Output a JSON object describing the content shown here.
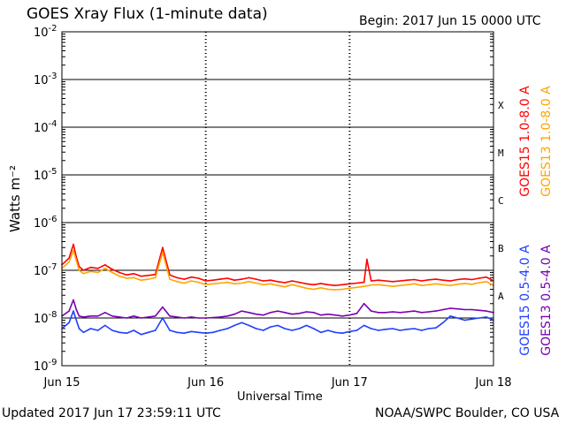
{
  "header": {
    "title": "GOES Xray Flux (1-minute data)",
    "begin": "Begin:  2017 Jun 15 0000 UTC"
  },
  "footer": {
    "updated": "Updated 2017 Jun 17 23:59:11 UTC",
    "credit": "NOAA/SWPC Boulder, CO USA"
  },
  "chart_data": {
    "type": "line",
    "title": "GOES Xray Flux (1-minute data)",
    "xlabel": "Universal Time",
    "ylabel": "Watts m⁻²",
    "yscale": "log",
    "ylim": [
      1e-09,
      0.01
    ],
    "xlim": [
      0,
      3
    ],
    "x_tick_labels": [
      "Jun 15",
      "Jun 16",
      "Jun 17",
      "Jun 18"
    ],
    "y_tick_labels": [
      {
        "value": 1e-09,
        "base": "10",
        "exp": "-9"
      },
      {
        "value": 1e-08,
        "base": "10",
        "exp": "-8"
      },
      {
        "value": 1e-07,
        "base": "10",
        "exp": "-7"
      },
      {
        "value": 1e-06,
        "base": "10",
        "exp": "-6"
      },
      {
        "value": 1e-05,
        "base": "10",
        "exp": "-5"
      },
      {
        "value": 0.0001,
        "base": "10",
        "exp": "-4"
      },
      {
        "value": 0.001,
        "base": "10",
        "exp": "-3"
      },
      {
        "value": 0.01,
        "base": "10",
        "exp": "-2"
      }
    ],
    "flare_classes": [
      {
        "label": "A",
        "value": 3e-08
      },
      {
        "label": "B",
        "value": 3e-07
      },
      {
        "label": "C",
        "value": 3e-06
      },
      {
        "label": "M",
        "value": 3e-05
      },
      {
        "label": "X",
        "value": 0.0003
      }
    ],
    "grid": true,
    "legend_placement": "right",
    "series": [
      {
        "name": "GOES15 1.0-8.0 A",
        "color": "#ff0000",
        "x": [
          0,
          0.05,
          0.08,
          0.1,
          0.12,
          0.15,
          0.2,
          0.25,
          0.3,
          0.35,
          0.4,
          0.45,
          0.5,
          0.55,
          0.6,
          0.65,
          0.7,
          0.75,
          0.8,
          0.85,
          0.9,
          0.95,
          1.0,
          1.05,
          1.1,
          1.15,
          1.2,
          1.25,
          1.3,
          1.35,
          1.4,
          1.45,
          1.5,
          1.55,
          1.6,
          1.65,
          1.7,
          1.75,
          1.8,
          1.85,
          1.9,
          1.95,
          2.0,
          2.05,
          2.1,
          2.12,
          2.15,
          2.2,
          2.25,
          2.3,
          2.35,
          2.4,
          2.45,
          2.5,
          2.55,
          2.6,
          2.65,
          2.7,
          2.75,
          2.8,
          2.85,
          2.9,
          2.95,
          3.0
        ],
        "y": [
          1.3e-07,
          1.8e-07,
          3.5e-07,
          1.9e-07,
          1.2e-07,
          1e-07,
          1.15e-07,
          1.1e-07,
          1.3e-07,
          1.05e-07,
          9e-08,
          8e-08,
          8.5e-08,
          7.5e-08,
          7.8e-08,
          8.2e-08,
          3e-07,
          8e-08,
          7e-08,
          6.5e-08,
          7.2e-08,
          6.8e-08,
          6e-08,
          6.2e-08,
          6.5e-08,
          6.8e-08,
          6.2e-08,
          6.5e-08,
          7e-08,
          6.5e-08,
          6e-08,
          6.2e-08,
          5.8e-08,
          5.5e-08,
          6e-08,
          5.6e-08,
          5.2e-08,
          5e-08,
          5.3e-08,
          5e-08,
          4.8e-08,
          5e-08,
          5.2e-08,
          5.4e-08,
          5.6e-08,
          1.7e-07,
          6e-08,
          6.2e-08,
          6e-08,
          5.8e-08,
          6e-08,
          6.2e-08,
          6.4e-08,
          6e-08,
          6.3e-08,
          6.5e-08,
          6.2e-08,
          6e-08,
          6.4e-08,
          6.6e-08,
          6.4e-08,
          6.8e-08,
          7.2e-08,
          6e-08
        ]
      },
      {
        "name": "GOES13 1.0-8.0 A",
        "color": "#ffa500",
        "x": [
          0,
          0.05,
          0.08,
          0.1,
          0.12,
          0.15,
          0.2,
          0.25,
          0.3,
          0.35,
          0.4,
          0.45,
          0.5,
          0.55,
          0.6,
          0.65,
          0.7,
          0.75,
          0.8,
          0.85,
          0.9,
          0.95,
          1.0,
          1.05,
          1.1,
          1.15,
          1.2,
          1.25,
          1.3,
          1.35,
          1.4,
          1.45,
          1.5,
          1.55,
          1.6,
          1.65,
          1.7,
          1.75,
          1.8,
          1.85,
          1.9,
          1.95,
          2.0,
          2.05,
          2.1,
          2.15,
          2.2,
          2.25,
          2.3,
          2.35,
          2.4,
          2.45,
          2.5,
          2.55,
          2.6,
          2.65,
          2.7,
          2.75,
          2.8,
          2.85,
          2.9,
          2.95,
          3.0
        ],
        "y": [
          1.1e-07,
          1.5e-07,
          2.6e-07,
          1.6e-07,
          1e-07,
          8.5e-08,
          9.5e-08,
          9e-08,
          1.1e-07,
          9e-08,
          7.5e-08,
          6.8e-08,
          7e-08,
          6.2e-08,
          6.5e-08,
          7e-08,
          2.4e-07,
          6.5e-08,
          5.8e-08,
          5.4e-08,
          6e-08,
          5.6e-08,
          5e-08,
          5.2e-08,
          5.4e-08,
          5.6e-08,
          5.2e-08,
          5.4e-08,
          5.8e-08,
          5.4e-08,
          5e-08,
          5.2e-08,
          4.8e-08,
          4.5e-08,
          5e-08,
          4.6e-08,
          4.2e-08,
          4e-08,
          4.3e-08,
          4e-08,
          3.9e-08,
          4e-08,
          4.2e-08,
          4.4e-08,
          4.6e-08,
          4.9e-08,
          5e-08,
          4.8e-08,
          4.6e-08,
          4.8e-08,
          5e-08,
          5.2e-08,
          4.8e-08,
          5e-08,
          5.2e-08,
          5e-08,
          4.8e-08,
          5.1e-08,
          5.3e-08,
          5.1e-08,
          5.5e-08,
          5.8e-08,
          4.8e-08
        ]
      },
      {
        "name": "GOES15 0.5-4.0 A",
        "color": "#1f3fff",
        "x": [
          0,
          0.05,
          0.08,
          0.1,
          0.12,
          0.15,
          0.2,
          0.25,
          0.3,
          0.35,
          0.4,
          0.45,
          0.5,
          0.55,
          0.6,
          0.65,
          0.7,
          0.75,
          0.8,
          0.85,
          0.9,
          0.95,
          1.0,
          1.05,
          1.1,
          1.15,
          1.2,
          1.25,
          1.3,
          1.35,
          1.4,
          1.45,
          1.5,
          1.55,
          1.6,
          1.65,
          1.7,
          1.75,
          1.8,
          1.85,
          1.9,
          1.95,
          2.0,
          2.05,
          2.1,
          2.15,
          2.2,
          2.25,
          2.3,
          2.35,
          2.4,
          2.45,
          2.5,
          2.55,
          2.6,
          2.65,
          2.7,
          2.75,
          2.8,
          2.85,
          2.9,
          2.95,
          3.0
        ],
        "y": [
          6e-09,
          8e-09,
          1.4e-08,
          9e-09,
          6e-09,
          5e-09,
          6e-09,
          5.5e-09,
          7e-09,
          5.5e-09,
          5e-09,
          4.8e-09,
          5.5e-09,
          4.5e-09,
          5e-09,
          5.5e-09,
          1e-08,
          5.5e-09,
          5e-09,
          4.8e-09,
          5.2e-09,
          5e-09,
          4.8e-09,
          5e-09,
          5.5e-09,
          6e-09,
          7e-09,
          8e-09,
          7e-09,
          6e-09,
          5.5e-09,
          6.5e-09,
          7e-09,
          6e-09,
          5.5e-09,
          6e-09,
          7e-09,
          6e-09,
          5e-09,
          5.5e-09,
          5e-09,
          4.8e-09,
          5.2e-09,
          5.5e-09,
          7e-09,
          6e-09,
          5.5e-09,
          5.8e-09,
          6e-09,
          5.5e-09,
          5.8e-09,
          6e-09,
          5.5e-09,
          6e-09,
          6.2e-09,
          8e-09,
          1.1e-08,
          1e-08,
          9e-09,
          9.5e-09,
          1e-08,
          1.05e-08,
          9e-09
        ]
      },
      {
        "name": "GOES13 0.5-4.0 A",
        "color": "#7a00b0",
        "x": [
          0,
          0.05,
          0.08,
          0.1,
          0.12,
          0.15,
          0.2,
          0.25,
          0.3,
          0.35,
          0.4,
          0.45,
          0.5,
          0.55,
          0.6,
          0.65,
          0.7,
          0.75,
          0.8,
          0.85,
          0.9,
          0.95,
          1.0,
          1.05,
          1.1,
          1.15,
          1.2,
          1.25,
          1.3,
          1.35,
          1.4,
          1.45,
          1.5,
          1.55,
          1.6,
          1.65,
          1.7,
          1.75,
          1.8,
          1.85,
          1.9,
          1.95,
          2.0,
          2.05,
          2.1,
          2.15,
          2.2,
          2.25,
          2.3,
          2.35,
          2.4,
          2.45,
          2.5,
          2.55,
          2.6,
          2.65,
          2.7,
          2.75,
          2.8,
          2.85,
          2.9,
          2.95,
          3.0
        ],
        "y": [
          1.1e-08,
          1.4e-08,
          2.4e-08,
          1.5e-08,
          1.1e-08,
          1.05e-08,
          1.1e-08,
          1.1e-08,
          1.3e-08,
          1.1e-08,
          1.05e-08,
          1e-08,
          1.1e-08,
          1e-08,
          1.05e-08,
          1.1e-08,
          1.7e-08,
          1.1e-08,
          1.05e-08,
          1e-08,
          1.05e-08,
          1e-08,
          1e-08,
          1.02e-08,
          1.05e-08,
          1.1e-08,
          1.2e-08,
          1.4e-08,
          1.3e-08,
          1.2e-08,
          1.15e-08,
          1.3e-08,
          1.4e-08,
          1.3e-08,
          1.2e-08,
          1.25e-08,
          1.35e-08,
          1.3e-08,
          1.15e-08,
          1.2e-08,
          1.15e-08,
          1.1e-08,
          1.15e-08,
          1.25e-08,
          2e-08,
          1.4e-08,
          1.3e-08,
          1.3e-08,
          1.35e-08,
          1.3e-08,
          1.35e-08,
          1.4e-08,
          1.3e-08,
          1.35e-08,
          1.4e-08,
          1.5e-08,
          1.6e-08,
          1.55e-08,
          1.5e-08,
          1.5e-08,
          1.45e-08,
          1.4e-08,
          1.3e-08
        ]
      }
    ]
  }
}
